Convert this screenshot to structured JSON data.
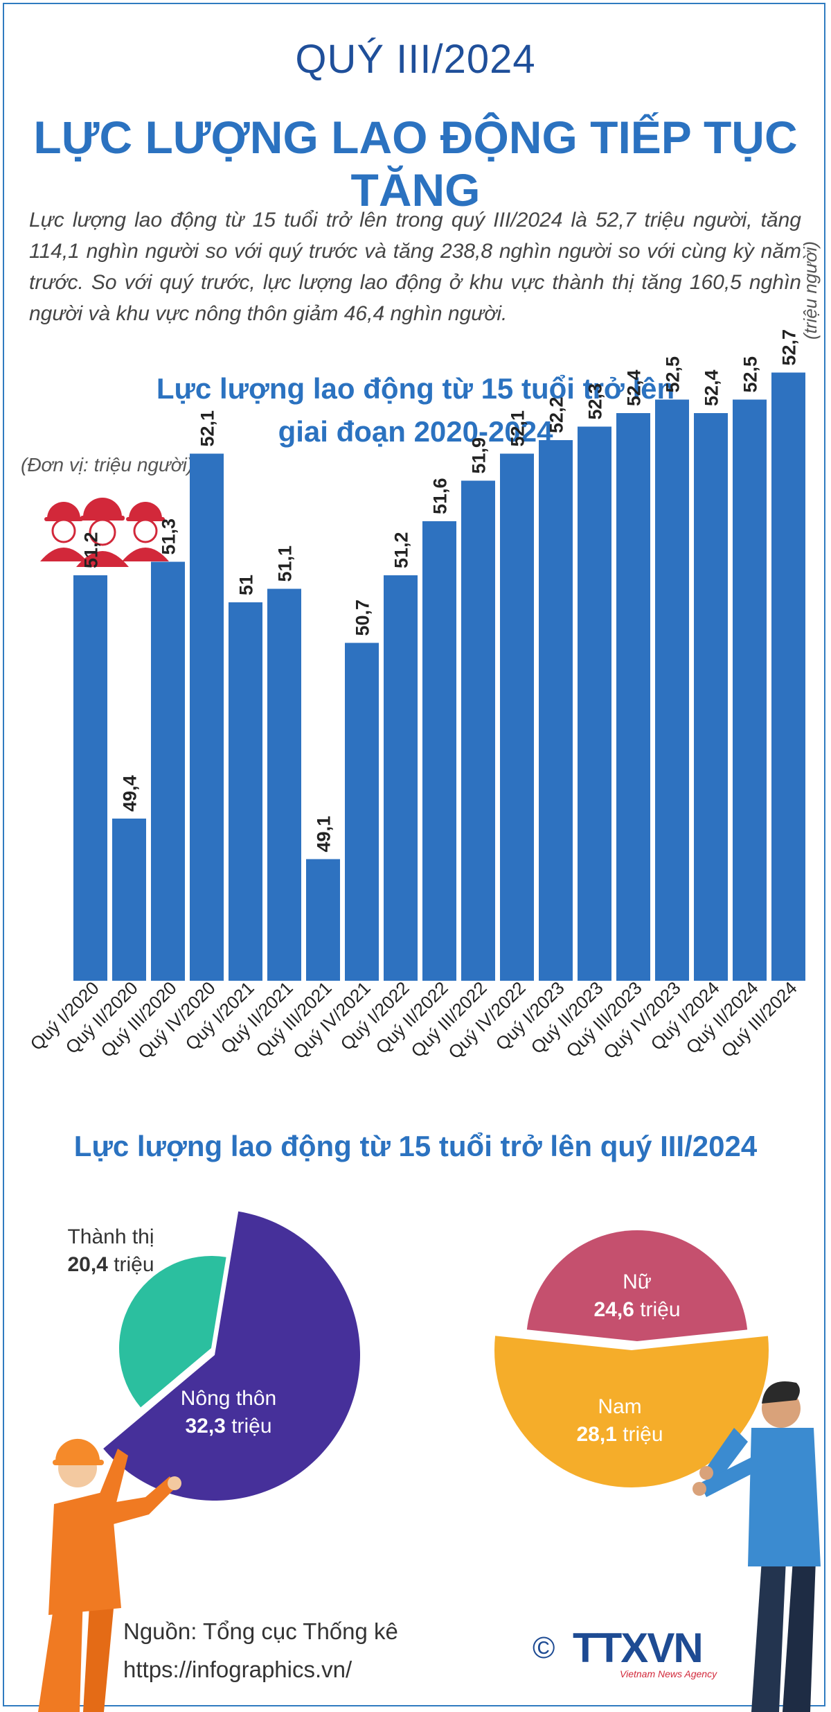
{
  "header": {
    "subtitle": "QUÝ III/2024",
    "title": "LỰC LƯỢNG LAO ĐỘNG TIẾP TỤC TĂNG"
  },
  "intro": "Lực lượng lao động từ 15 tuổi trở lên trong quý III/2024 là 52,7 triệu người, tăng 114,1 nghìn người so với quý trước và tăng 238,8 nghìn người so với cùng kỳ năm trước. So với quý trước, lực lượng lao động ở khu vực thành thị tăng 160,5 nghìn người và khu vực nông thôn giảm 46,4 nghìn người.",
  "chart_data": [
    {
      "type": "bar",
      "title": "Lực lượng lao động từ 15 tuổi trở lên giai đoạn 2020-2024",
      "title_line1": "Lực lượng lao động từ 15 tuổi trở lên",
      "title_line2": "giai đoạn 2020-2024",
      "unit": "(Đơn vị: triệu người)",
      "last_label_unit": "(triệu người)",
      "categories": [
        "Quý I/2020",
        "Quý II/2020",
        "Quý III/2020",
        "Quý IV/2020",
        "Quý I/2021",
        "Quý II/2021",
        "Quý III/2021",
        "Quý IV/2021",
        "Quý I/2022",
        "Quý II/2022",
        "Quý III/2022",
        "Quý IV/2022",
        "Quý I/2023",
        "Quý II/2023",
        "Quý III/2023",
        "Quý IV/2023",
        "Quý I/2024",
        "Quý II/2024",
        "Quý III/2024"
      ],
      "values": [
        51.2,
        49.4,
        51.3,
        52.1,
        51.0,
        51.1,
        49.1,
        50.7,
        51.2,
        51.6,
        51.9,
        52.1,
        52.2,
        52.3,
        52.4,
        52.5,
        52.4,
        52.5,
        52.7
      ],
      "value_labels": [
        "51,2",
        "49,4",
        "51,3",
        "52,1",
        "51",
        "51,1",
        "49,1",
        "50,7",
        "51,2",
        "51,6",
        "51,9",
        "52,1",
        "52,2",
        "52,3",
        "52,4",
        "52,5",
        "52,4",
        "52,5",
        "52,7"
      ],
      "bar_color": "#2e72c0"
    },
    {
      "type": "pie",
      "title": "Lực lượng lao động từ 15 tuổi trở lên quý III/2024",
      "slices": [
        {
          "label": "Thành thị",
          "value": 20.4,
          "value_label": "20,4",
          "unit": "triệu",
          "color": "#2bbf9f"
        },
        {
          "label": "Nông thôn",
          "value": 32.3,
          "value_label": "32,3",
          "unit": "triệu",
          "color": "#46309a"
        }
      ]
    },
    {
      "type": "pie",
      "slices": [
        {
          "label": "Nữ",
          "value": 24.6,
          "value_label": "24,6",
          "unit": "triệu",
          "color": "#c5506e"
        },
        {
          "label": "Nam",
          "value": 28.1,
          "value_label": "28,1",
          "unit": "triệu",
          "color": "#f5ad2a"
        }
      ]
    }
  ],
  "footer": {
    "source": "Nguồn: Tổng cục Thống kê",
    "url": "https://infographics.vn/",
    "copyright": "©",
    "logo_text": "TTXVN",
    "logo_sub": "Vietnam News Agency"
  }
}
